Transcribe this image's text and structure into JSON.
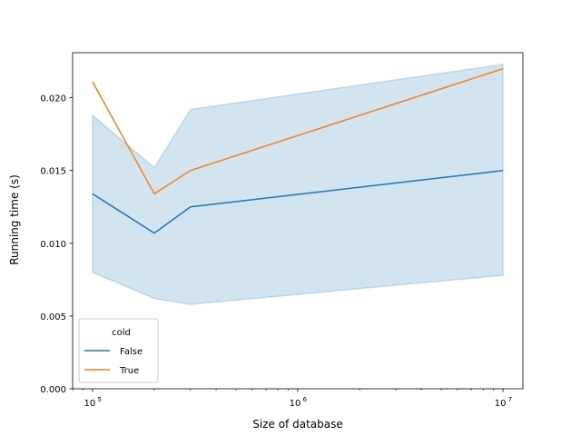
{
  "chart_data": {
    "type": "line",
    "xscale": "log",
    "xlabel": "Size of database",
    "ylabel": "Running time (s)",
    "xlim": [
      80000,
      12500000
    ],
    "ylim": [
      0.0,
      0.0231
    ],
    "grid": false,
    "x_ticks": [
      {
        "value": 100000,
        "mantissa": "10",
        "exp": "5"
      },
      {
        "value": 1000000,
        "mantissa": "10",
        "exp": "6"
      },
      {
        "value": 10000000,
        "mantissa": "10",
        "exp": "7"
      }
    ],
    "y_ticks": [
      {
        "value": 0.0,
        "label": "0.000"
      },
      {
        "value": 0.005,
        "label": "0.005"
      },
      {
        "value": 0.01,
        "label": "0.010"
      },
      {
        "value": 0.015,
        "label": "0.015"
      },
      {
        "value": 0.02,
        "label": "0.020"
      }
    ],
    "x": [
      100000,
      200000,
      300000,
      10000000
    ],
    "series": [
      {
        "name": "False",
        "color": "#1f77b4",
        "values": [
          0.0134,
          0.0107,
          0.0125,
          0.015
        ]
      },
      {
        "name": "True",
        "color": "#ff7f0e",
        "values": [
          0.0211,
          0.0134,
          0.015,
          0.022
        ]
      }
    ],
    "band": {
      "series": "False",
      "color": "#1f77b4",
      "upper": [
        0.0188,
        0.0152,
        0.0192,
        0.0223
      ],
      "lower": [
        0.008,
        0.0062,
        0.0058,
        0.0078
      ]
    },
    "legend": {
      "title": "cold",
      "location": "lower-left"
    }
  }
}
